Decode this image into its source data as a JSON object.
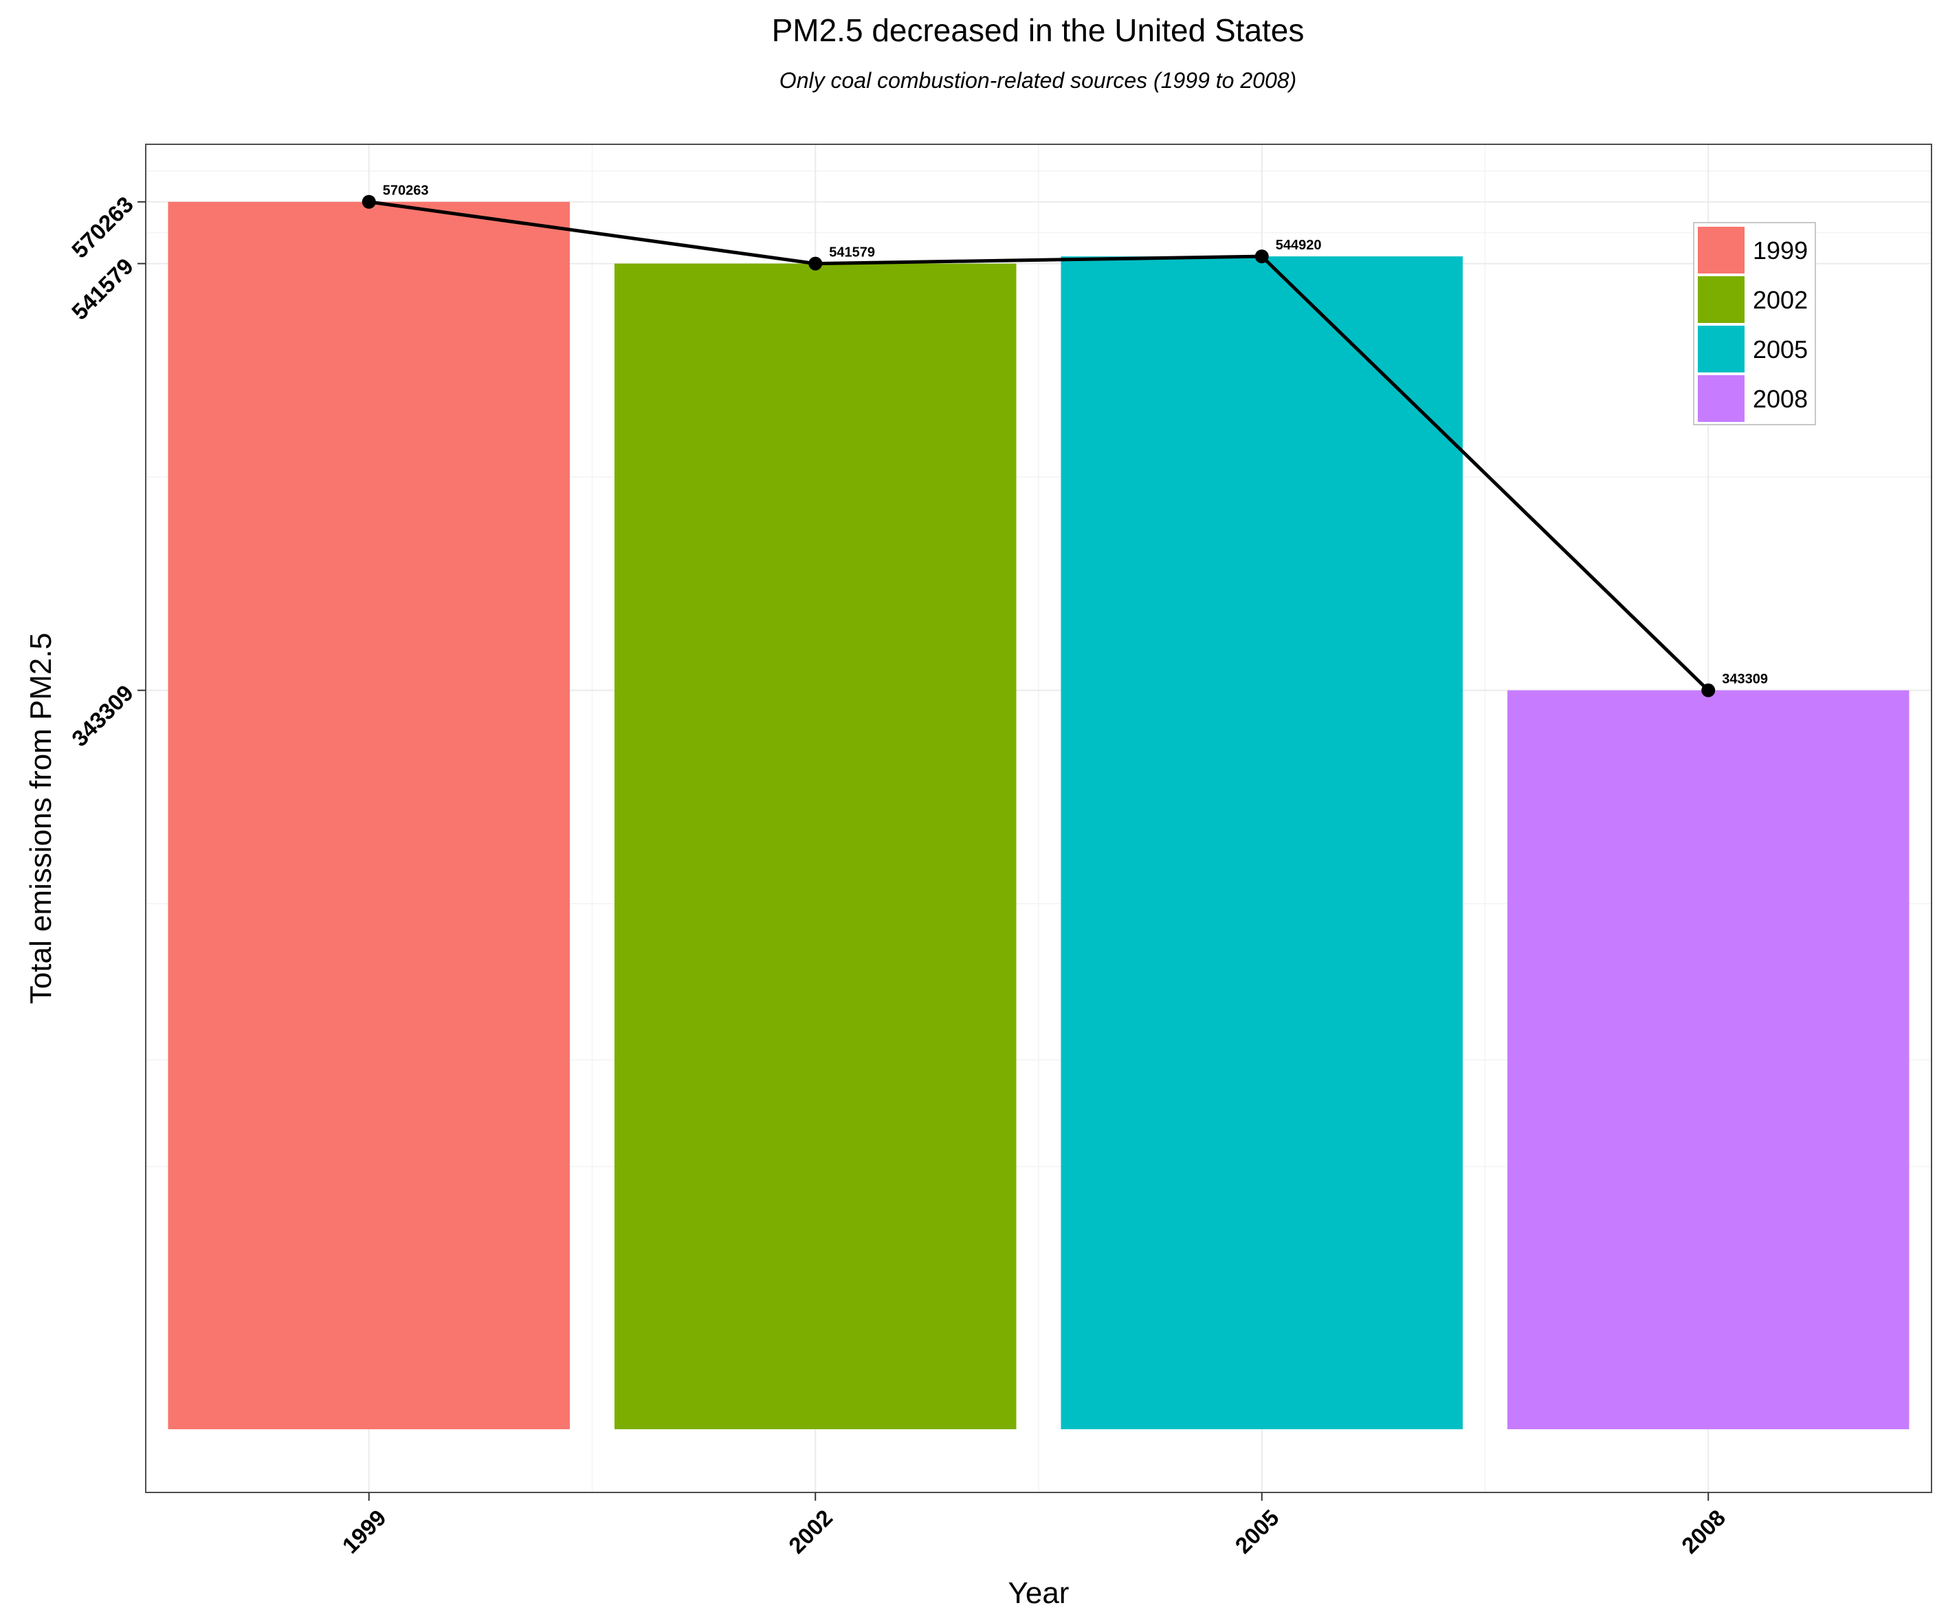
{
  "chart_data": {
    "type": "bar",
    "title": "PM2.5 decreased in the United States",
    "subtitle": "Only coal combustion-related sources (1999 to 2008)",
    "xlabel": "Year",
    "ylabel": "Total emissions from PM2.5",
    "categories": [
      "1999",
      "2002",
      "2005",
      "2008"
    ],
    "values": [
      570263,
      541579,
      544920,
      343309
    ],
    "data_labels": [
      "570263",
      "541579",
      "544920",
      "343309"
    ],
    "y_ticks": [
      343309,
      541579,
      570263
    ],
    "y_tick_labels": [
      "343309",
      "541579",
      "570263"
    ],
    "ylim": [
      0,
      597000
    ],
    "overlay_line": true,
    "grid": true,
    "legend": {
      "position": "top-right",
      "entries": [
        "1999",
        "2002",
        "2005",
        "2008"
      ]
    },
    "colors": [
      "#F8766D",
      "#7CAE00",
      "#00BFC4",
      "#C77CFF"
    ]
  }
}
